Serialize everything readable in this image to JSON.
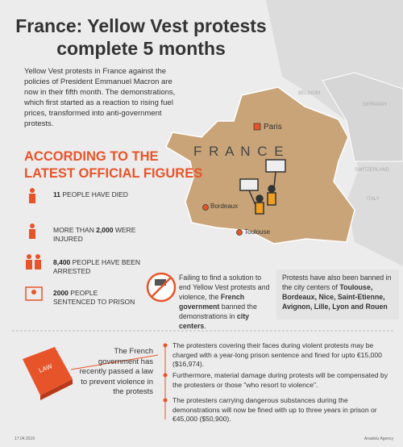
{
  "header": {
    "title_lines": [
      "France: Yellow Vest protests",
      "complete 5 months"
    ],
    "intro": "Yellow Vest protests in France against the policies of President Emmanuel Macron are now in their fifth month. The demonstrations, which first started as a reaction to rising fuel prices, transformed into anti-government protests."
  },
  "map": {
    "country": "F R A N C E",
    "cities": [
      "Paris",
      "Bordeaux",
      "Toulouse"
    ],
    "neighbors": [
      "BELGIUM",
      "GERMANY",
      "SWITZERLAND",
      "ITALY"
    ]
  },
  "figures": {
    "heading_lines": [
      "ACCORDING TO THE",
      "LATEST OFFICIAL FIGURES"
    ],
    "stats": [
      [
        {
          "text": "11",
          "bold": true
        },
        {
          "text": " PEOPLE HAVE DIED",
          "bold": false
        }
      ],
      [
        {
          "text": "MORE THAN ",
          "bold": false
        },
        {
          "text": "2,000",
          "bold": true
        },
        {
          "text": " WERE INJURED",
          "bold": false
        }
      ],
      [
        {
          "text": "8,400",
          "bold": true
        },
        {
          "text": " PEOPLE HAVE BEEN ARRESTED",
          "bold": false
        }
      ],
      [
        {
          "text": "2000",
          "bold": true
        },
        {
          "text": " PEOPLE SENTENCED TO PRISON",
          "bold": false
        }
      ]
    ]
  },
  "bans": [
    [
      {
        "text": "Failing to find a solution to end Yellow Vest protests and violence, the ",
        "bold": false
      },
      {
        "text": "French government",
        "bold": true
      },
      {
        "text": " banned the demonstrations in ",
        "bold": false
      },
      {
        "text": "city centers",
        "bold": true
      },
      {
        "text": ".",
        "bold": false
      }
    ],
    [
      {
        "text": "Protests have also been banned in the city centers of ",
        "bold": false
      },
      {
        "text": "Toulouse, Bordeaux, Nice, Saint-Etienne, Avignon, Lille, Lyon and Rouen",
        "bold": true
      }
    ]
  ],
  "law": {
    "icon_label": "LAW",
    "summary": "The French government has recently passed a law to prevent violence in the protests",
    "points": [
      "The protesters covering their faces during violent protests may be charged with a year-long prison sentence and fined for upto €15,000 ($16,974).",
      "Furthermore, material damage during protests will be compensated by the protesters or those \"who resort to violence\".",
      "The protesters carrying dangerous substances during the demonstrations will now be fined with up to three years in prison or €45,000 ($50,900)."
    ]
  },
  "footer": {
    "date": "17.04.2019",
    "source": "Anadolu Agency"
  }
}
